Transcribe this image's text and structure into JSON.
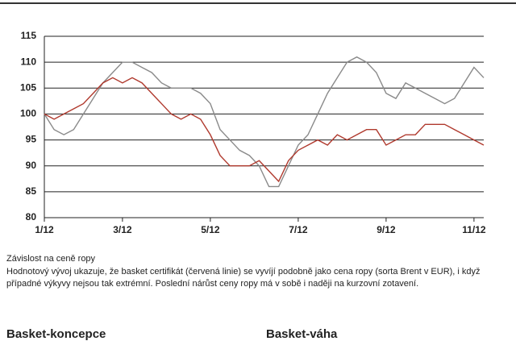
{
  "chart_data": {
    "type": "line",
    "categories": [
      "1/12",
      null,
      null,
      null,
      null,
      null,
      null,
      null,
      "3/12",
      null,
      null,
      null,
      null,
      null,
      null,
      null,
      null,
      "5/12",
      null,
      null,
      null,
      null,
      null,
      null,
      null,
      null,
      "7/12",
      null,
      null,
      null,
      null,
      null,
      null,
      null,
      null,
      "9/12",
      null,
      null,
      null,
      null,
      null,
      null,
      null,
      null,
      "11/12",
      null
    ],
    "series": [
      {
        "color": "#8a8a8a",
        "values": [
          100,
          97,
          96,
          97,
          100,
          103,
          106,
          108,
          110,
          110,
          109,
          108,
          106,
          105,
          105,
          105,
          104,
          102,
          97,
          95,
          93,
          92,
          90,
          86,
          86,
          90,
          94,
          96,
          100,
          104,
          107,
          110,
          111,
          110,
          108,
          104,
          103,
          106,
          105,
          104,
          103,
          102,
          103,
          106,
          109,
          107
        ]
      },
      {
        "color": "#b03a2e",
        "values": [
          100,
          99,
          100,
          101,
          102,
          104,
          106,
          107,
          106,
          107,
          106,
          104,
          102,
          100,
          99,
          100,
          99,
          96,
          92,
          90,
          90,
          90,
          91,
          89,
          87,
          91,
          93,
          94,
          95,
          94,
          96,
          95,
          96,
          97,
          97,
          94,
          95,
          96,
          96,
          98,
          98,
          98,
          97,
          96,
          95,
          94
        ]
      }
    ],
    "ylim": [
      80,
      115
    ],
    "yticks": [
      80,
      85,
      90,
      95,
      100,
      105,
      110,
      115
    ],
    "grid": true
  },
  "caption": {
    "heading": "Závislost na ceně ropy",
    "text": "Hodnotový vývoj ukazuje, že basket certifikát (červená linie) se vyvíjí podobně jako cena ropy (sorta Brent v EUR), i když případné výkyvy nejsou tak extrémní. Poslední nárůst ceny ropy má v sobě i naději na kurzovní zotavení."
  },
  "sections": [
    "Basket-koncepce",
    "Basket-váha"
  ]
}
